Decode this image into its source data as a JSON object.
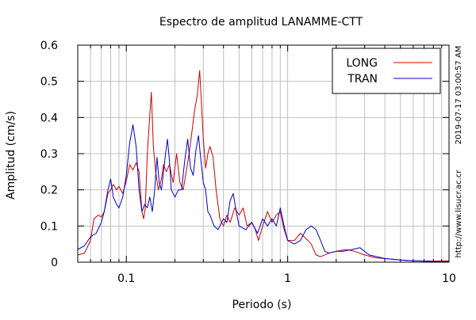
{
  "chart_data": {
    "type": "line",
    "title": "Espectro de amplitud LANAMME-CTT",
    "xlabel": "Periodo (s)",
    "ylabel": "Amplitud (cm/s)",
    "x_scale": "log",
    "xlim": [
      0.05,
      10
    ],
    "ylim": [
      0,
      0.6
    ],
    "x_ticks": [
      {
        "value": 0.1,
        "label": "0.1"
      },
      {
        "value": 1,
        "label": "1"
      },
      {
        "value": 10,
        "label": "10"
      }
    ],
    "y_ticks": [
      {
        "value": 0,
        "label": "0"
      },
      {
        "value": 0.1,
        "label": "0.1"
      },
      {
        "value": 0.2,
        "label": "0.2"
      },
      {
        "value": 0.3,
        "label": "0.3"
      },
      {
        "value": 0.4,
        "label": "0.4"
      },
      {
        "value": 0.5,
        "label": "0.5"
      },
      {
        "value": 0.6,
        "label": "0.6"
      }
    ],
    "grid": true,
    "legend_position": "top-right",
    "side_annotations": [
      "2019-07-17 03:00:57 AM",
      "http://www.lisucr.ac.cr"
    ],
    "series": [
      {
        "name": "LONG",
        "color": "#cc0000",
        "points": [
          [
            0.05,
            0.02
          ],
          [
            0.055,
            0.025
          ],
          [
            0.06,
            0.06
          ],
          [
            0.063,
            0.12
          ],
          [
            0.067,
            0.13
          ],
          [
            0.07,
            0.125
          ],
          [
            0.073,
            0.14
          ],
          [
            0.077,
            0.19
          ],
          [
            0.08,
            0.2
          ],
          [
            0.083,
            0.215
          ],
          [
            0.087,
            0.2
          ],
          [
            0.09,
            0.21
          ],
          [
            0.095,
            0.19
          ],
          [
            0.1,
            0.225
          ],
          [
            0.105,
            0.27
          ],
          [
            0.11,
            0.255
          ],
          [
            0.115,
            0.275
          ],
          [
            0.12,
            0.25
          ],
          [
            0.125,
            0.14
          ],
          [
            0.128,
            0.12
          ],
          [
            0.131,
            0.15
          ],
          [
            0.135,
            0.3
          ],
          [
            0.14,
            0.41
          ],
          [
            0.143,
            0.47
          ],
          [
            0.147,
            0.32
          ],
          [
            0.152,
            0.25
          ],
          [
            0.158,
            0.2
          ],
          [
            0.165,
            0.23
          ],
          [
            0.17,
            0.27
          ],
          [
            0.177,
            0.25
          ],
          [
            0.185,
            0.27
          ],
          [
            0.195,
            0.22
          ],
          [
            0.205,
            0.3
          ],
          [
            0.215,
            0.22
          ],
          [
            0.225,
            0.2
          ],
          [
            0.235,
            0.25
          ],
          [
            0.245,
            0.3
          ],
          [
            0.255,
            0.36
          ],
          [
            0.265,
            0.42
          ],
          [
            0.275,
            0.46
          ],
          [
            0.285,
            0.53
          ],
          [
            0.292,
            0.44
          ],
          [
            0.3,
            0.34
          ],
          [
            0.31,
            0.26
          ],
          [
            0.32,
            0.3
          ],
          [
            0.33,
            0.32
          ],
          [
            0.345,
            0.29
          ],
          [
            0.36,
            0.2
          ],
          [
            0.38,
            0.12
          ],
          [
            0.4,
            0.1
          ],
          [
            0.42,
            0.13
          ],
          [
            0.44,
            0.11
          ],
          [
            0.47,
            0.15
          ],
          [
            0.5,
            0.13
          ],
          [
            0.53,
            0.15
          ],
          [
            0.56,
            0.1
          ],
          [
            0.6,
            0.11
          ],
          [
            0.63,
            0.09
          ],
          [
            0.66,
            0.06
          ],
          [
            0.7,
            0.1
          ],
          [
            0.75,
            0.14
          ],
          [
            0.8,
            0.11
          ],
          [
            0.85,
            0.13
          ],
          [
            0.9,
            0.14
          ],
          [
            0.95,
            0.09
          ],
          [
            1.0,
            0.06
          ],
          [
            1.1,
            0.06
          ],
          [
            1.2,
            0.08
          ],
          [
            1.3,
            0.065
          ],
          [
            1.4,
            0.05
          ],
          [
            1.5,
            0.02
          ],
          [
            1.6,
            0.015
          ],
          [
            1.8,
            0.025
          ],
          [
            2.0,
            0.03
          ],
          [
            2.3,
            0.035
          ],
          [
            2.6,
            0.03
          ],
          [
            3.0,
            0.02
          ],
          [
            3.5,
            0.012
          ],
          [
            4.0,
            0.01
          ],
          [
            5.0,
            0.006
          ],
          [
            6.0,
            0.004
          ],
          [
            8.0,
            0.003
          ],
          [
            10.0,
            0.004
          ]
        ]
      },
      {
        "name": "TRAN",
        "color": "#0000cc",
        "points": [
          [
            0.05,
            0.035
          ],
          [
            0.055,
            0.045
          ],
          [
            0.06,
            0.07
          ],
          [
            0.065,
            0.08
          ],
          [
            0.07,
            0.11
          ],
          [
            0.073,
            0.14
          ],
          [
            0.077,
            0.2
          ],
          [
            0.08,
            0.23
          ],
          [
            0.083,
            0.18
          ],
          [
            0.087,
            0.16
          ],
          [
            0.09,
            0.15
          ],
          [
            0.095,
            0.18
          ],
          [
            0.1,
            0.24
          ],
          [
            0.105,
            0.33
          ],
          [
            0.11,
            0.38
          ],
          [
            0.115,
            0.32
          ],
          [
            0.12,
            0.2
          ],
          [
            0.125,
            0.14
          ],
          [
            0.13,
            0.16
          ],
          [
            0.135,
            0.15
          ],
          [
            0.14,
            0.18
          ],
          [
            0.145,
            0.14
          ],
          [
            0.15,
            0.2
          ],
          [
            0.155,
            0.29
          ],
          [
            0.16,
            0.22
          ],
          [
            0.165,
            0.2
          ],
          [
            0.17,
            0.25
          ],
          [
            0.175,
            0.3
          ],
          [
            0.18,
            0.34
          ],
          [
            0.185,
            0.28
          ],
          [
            0.19,
            0.2
          ],
          [
            0.2,
            0.18
          ],
          [
            0.21,
            0.2
          ],
          [
            0.22,
            0.2
          ],
          [
            0.23,
            0.28
          ],
          [
            0.24,
            0.34
          ],
          [
            0.25,
            0.26
          ],
          [
            0.26,
            0.24
          ],
          [
            0.27,
            0.31
          ],
          [
            0.28,
            0.35
          ],
          [
            0.29,
            0.28
          ],
          [
            0.3,
            0.22
          ],
          [
            0.31,
            0.2
          ],
          [
            0.32,
            0.14
          ],
          [
            0.33,
            0.13
          ],
          [
            0.35,
            0.1
          ],
          [
            0.37,
            0.09
          ],
          [
            0.4,
            0.12
          ],
          [
            0.42,
            0.11
          ],
          [
            0.44,
            0.17
          ],
          [
            0.46,
            0.19
          ],
          [
            0.48,
            0.14
          ],
          [
            0.5,
            0.1
          ],
          [
            0.55,
            0.09
          ],
          [
            0.6,
            0.11
          ],
          [
            0.65,
            0.08
          ],
          [
            0.7,
            0.12
          ],
          [
            0.75,
            0.1
          ],
          [
            0.8,
            0.12
          ],
          [
            0.85,
            0.1
          ],
          [
            0.9,
            0.15
          ],
          [
            0.95,
            0.1
          ],
          [
            1.0,
            0.06
          ],
          [
            1.1,
            0.05
          ],
          [
            1.2,
            0.06
          ],
          [
            1.3,
            0.09
          ],
          [
            1.4,
            0.1
          ],
          [
            1.5,
            0.09
          ],
          [
            1.6,
            0.06
          ],
          [
            1.7,
            0.03
          ],
          [
            1.8,
            0.025
          ],
          [
            2.0,
            0.03
          ],
          [
            2.2,
            0.03
          ],
          [
            2.5,
            0.035
          ],
          [
            2.8,
            0.04
          ],
          [
            3.2,
            0.02
          ],
          [
            4.0,
            0.01
          ],
          [
            5.0,
            0.006
          ],
          [
            6.0,
            0.004
          ],
          [
            8.0,
            0.002
          ],
          [
            10.0,
            0.001
          ]
        ]
      }
    ]
  }
}
